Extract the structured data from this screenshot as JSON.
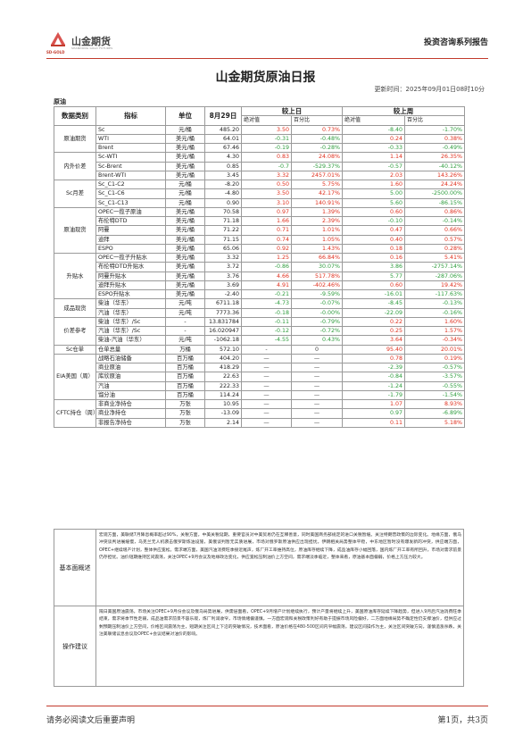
{
  "header": {
    "company_cn": "山金期货",
    "company_sub": "SHANDONG GOLD FUTURES",
    "company_en": "SD-GOLD",
    "report_series": "投资咨询系列报告"
  },
  "title": "山金期货原油日报",
  "update_time": "更新时间：2025年09月01日08时10分",
  "section": "原油",
  "table": {
    "headers": {
      "category": "数据类别",
      "indicator": "指标",
      "unit": "单位",
      "date": "8月29日",
      "vs_day": "较上日",
      "vs_week": "较上周"
    },
    "sub_headers": {
      "abs": "绝对值",
      "pct": "百分比"
    },
    "rows": [
      {
        "cat": "原油期货",
        "span": 3,
        "ind": "Sc",
        "unit": "元/桶",
        "val": "485.20",
        "d_abs": "3.50",
        "d_pct": "0.73%",
        "d_c": "red",
        "w_abs": "-8.40",
        "w_pct": "-1.70%",
        "w_c": "green"
      },
      {
        "ind": "WTI",
        "unit": "美元/桶",
        "val": "64.01",
        "d_abs": "-0.31",
        "d_pct": "-0.48%",
        "d_c": "green",
        "w_abs": "0.24",
        "w_pct": "0.38%",
        "w_c": "red"
      },
      {
        "ind": "Brent",
        "unit": "美元/桶",
        "val": "67.46",
        "d_abs": "-0.19",
        "d_pct": "-0.28%",
        "d_c": "green",
        "w_abs": "-0.33",
        "w_pct": "-0.49%",
        "w_c": "green"
      },
      {
        "cat": "内外价差",
        "span": 3,
        "ind": "Sc-WTI",
        "unit": "美元/桶",
        "val": "4.30",
        "d_abs": "0.83",
        "d_pct": "24.08%",
        "d_c": "red",
        "w_abs": "1.14",
        "w_pct": "26.35%",
        "w_c": "red"
      },
      {
        "ind": "Sc-Brent",
        "unit": "美元/桶",
        "val": "0.85",
        "d_abs": "-0.7",
        "d_pct": "-529.37%",
        "d_c": "green",
        "w_abs": "-0.57",
        "w_pct": "-40.12%",
        "w_c": "green"
      },
      {
        "ind": "Brent-WTI",
        "unit": "美元/桶",
        "val": "3.45",
        "d_abs": "3.32",
        "d_pct": "2457.01%",
        "d_c": "red",
        "w_abs": "2.03",
        "w_pct": "143.26%",
        "w_c": "red"
      },
      {
        "cat": "Sc月差",
        "span": 3,
        "ind": "Sc_C1-C2",
        "unit": "元/桶",
        "val": "-8.20",
        "d_abs": "0.50",
        "d_pct": "5.75%",
        "d_c": "red",
        "w_abs": "1.60",
        "w_pct": "24.24%",
        "w_c": "red"
      },
      {
        "ind": "Sc_C1-C6",
        "unit": "元/桶",
        "val": "-4.80",
        "d_abs": "3.50",
        "d_pct": "42.17%",
        "d_c": "red",
        "w_abs": "5.00",
        "w_pct": "-2500.00%",
        "w_c": "green"
      },
      {
        "ind": "Sc_C1-C13",
        "unit": "元/桶",
        "val": "0.90",
        "d_abs": "3.10",
        "d_pct": "140.91%",
        "d_c": "red",
        "w_abs": "5.60",
        "w_pct": "-86.15%",
        "w_c": "green"
      },
      {
        "cat": "原油现货",
        "span": 5,
        "ind": "OPEC一揽子原油",
        "unit": "美元/桶",
        "val": "70.58",
        "d_abs": "0.97",
        "d_pct": "1.39%",
        "d_c": "red",
        "w_abs": "0.60",
        "w_pct": "0.86%",
        "w_c": "red"
      },
      {
        "ind": "布伦特DTD",
        "unit": "美元/桶",
        "val": "71.18",
        "d_abs": "1.66",
        "d_pct": "2.39%",
        "d_c": "red",
        "w_abs": "-0.10",
        "w_pct": "-0.14%",
        "w_c": "green"
      },
      {
        "ind": "阿曼",
        "unit": "美元/桶",
        "val": "71.22",
        "d_abs": "0.71",
        "d_pct": "1.01%",
        "d_c": "red",
        "w_abs": "0.47",
        "w_pct": "0.66%",
        "w_c": "red"
      },
      {
        "ind": "迪拜",
        "unit": "美元/桶",
        "val": "71.15",
        "d_abs": "0.74",
        "d_pct": "1.05%",
        "d_c": "red",
        "w_abs": "0.40",
        "w_pct": "0.57%",
        "w_c": "red"
      },
      {
        "ind": "ESPO",
        "unit": "美元/桶",
        "val": "65.06",
        "d_abs": "0.92",
        "d_pct": "1.43%",
        "d_c": "red",
        "w_abs": "0.18",
        "w_pct": "0.28%",
        "w_c": "red"
      },
      {
        "cat": "升贴水",
        "span": 5,
        "ind": "OPEC一揽子升贴水",
        "unit": "美元/桶",
        "val": "3.32",
        "d_abs": "1.25",
        "d_pct": "66.84%",
        "d_c": "red",
        "w_abs": "0.16",
        "w_pct": "5.41%",
        "w_c": "red"
      },
      {
        "ind": "布伦特DTD升贴水",
        "unit": "美元/桶",
        "val": "3.72",
        "d_abs": "-0.86",
        "d_pct": "30.07%",
        "d_c": "green",
        "w_abs": "3.86",
        "w_pct": "-2757.14%",
        "w_c": "green"
      },
      {
        "ind": "阿曼升贴水",
        "unit": "美元/桶",
        "val": "3.76",
        "d_abs": "4.66",
        "d_pct": "517.78%",
        "d_c": "red",
        "w_abs": "5.77",
        "w_pct": "-287.06%",
        "w_c": "green"
      },
      {
        "ind": "迪拜升贴水",
        "unit": "美元/桶",
        "val": "3.69",
        "d_abs": "4.91",
        "d_pct": "-402.46%",
        "d_c": "red",
        "w_abs": "0.60",
        "w_pct": "19.42%",
        "w_c": "red"
      },
      {
        "ind": "ESPO升贴水",
        "unit": "美元/桶",
        "val": "-2.40",
        "d_abs": "-0.21",
        "d_pct": "-9.59%",
        "d_c": "green",
        "w_abs": "-16.01",
        "w_pct": "-117.63%",
        "w_c": "green"
      },
      {
        "cat": "成品现货",
        "span": 2,
        "ind": "柴油（华东）",
        "unit": "元/吨",
        "val": "6711.18",
        "d_abs": "-4.73",
        "d_pct": "-0.07%",
        "d_c": "green",
        "w_abs": "-8.45",
        "w_pct": "-0.13%",
        "w_c": "green"
      },
      {
        "ind": "汽油（华东）",
        "unit": "元/吨",
        "val": "7773.36",
        "d_abs": "-0.18",
        "d_pct": "-0.00%",
        "d_c": "green",
        "w_abs": "-22.09",
        "w_pct": "-0.16%",
        "w_c": "green"
      },
      {
        "cat": "价差参考",
        "span": 3,
        "ind": "柴油（华东）/Sc",
        "unit": "-",
        "val": "13.831784",
        "d_abs": "-0.11",
        "d_pct": "-0.79%",
        "d_c": "green",
        "w_abs": "0.22",
        "w_pct": "1.60%",
        "w_c": "red"
      },
      {
        "ind": "汽油（华东）/Sc",
        "unit": "-",
        "val": "16.020947",
        "d_abs": "-0.12",
        "d_pct": "-0.72%",
        "d_c": "green",
        "w_abs": "0.25",
        "w_pct": "1.57%",
        "w_c": "red"
      },
      {
        "ind": "柴油-汽油（华东）",
        "unit": "元/吨",
        "val": "-1062.18",
        "d_abs": "-4.55",
        "d_pct": "0.43%",
        "d_c": "green",
        "w_abs": "3.64",
        "w_pct": "-0.34%",
        "w_c": "red"
      },
      {
        "cat": "Sc仓单",
        "span": 1,
        "ind": "仓单总量",
        "unit": "万桶",
        "val": "572.10",
        "d_abs": "-",
        "d_pct": "0",
        "d_c": "dash",
        "w_abs": "95.40",
        "w_pct": "20.01%",
        "w_c": "red"
      },
      {
        "cat": "EIA美国（周）",
        "span": 5,
        "ind": "战略石油储备",
        "unit": "百万桶",
        "val": "404.20",
        "d_abs": "—",
        "d_pct": "—",
        "d_c": "dash",
        "w_abs": "0.78",
        "w_pct": "0.19%",
        "w_c": "red"
      },
      {
        "ind": "商业原油",
        "unit": "百万桶",
        "val": "418.29",
        "d_abs": "—",
        "d_pct": "—",
        "d_c": "dash",
        "w_abs": "-2.39",
        "w_pct": "-0.57%",
        "w_c": "green"
      },
      {
        "ind": "库欣原油",
        "unit": "百万桶",
        "val": "22.63",
        "d_abs": "—",
        "d_pct": "—",
        "d_c": "dash",
        "w_abs": "-0.84",
        "w_pct": "-3.57%",
        "w_c": "green"
      },
      {
        "ind": "汽油",
        "unit": "百万桶",
        "val": "222.33",
        "d_abs": "—",
        "d_pct": "—",
        "d_c": "dash",
        "w_abs": "-1.24",
        "w_pct": "-0.55%",
        "w_c": "green"
      },
      {
        "ind": "馏分油",
        "unit": "百万桶",
        "val": "114.24",
        "d_abs": "—",
        "d_pct": "—",
        "d_c": "dash",
        "w_abs": "-1.79",
        "w_pct": "-1.54%",
        "w_c": "green"
      },
      {
        "cat": "CFTC持仓（周）",
        "span": 3,
        "ind": "非商业净持仓",
        "unit": "万张",
        "val": "10.95",
        "d_abs": "—",
        "d_pct": "—",
        "d_c": "dash",
        "w_abs": "1.07",
        "w_pct": "8.93%",
        "w_c": "red"
      },
      {
        "ind": "商业净持仓",
        "unit": "万张",
        "val": "-13.09",
        "d_abs": "—",
        "d_pct": "—",
        "d_c": "dash",
        "w_abs": "0.97",
        "w_pct": "-6.89%",
        "w_c": "green"
      },
      {
        "ind": "非报告净持仓",
        "unit": "万张",
        "val": "2.14",
        "d_abs": "—",
        "d_pct": "—",
        "d_c": "dash",
        "w_abs": "0.11",
        "w_pct": "5.18%",
        "w_c": "red"
      }
    ]
  },
  "notes": {
    "basic_label": "基本面概述",
    "basic_text": "宏观方面，美联储7月降息概率超过90%，关税方面，中美关税延期，重要官员对中美贸易仍在互释善意，同时美国商务部规定的进口关税暂缓。关注特朗普政策的边际变化。地缘方面，俄乌冲突谈判进展缓慢，乌克兰无人机袭击俄罗斯炼油设施，美俄谈判暂无实质进展，市场对俄罗斯原油供应出现担忧，伊朗相关局势整体平稳，中东地区暂时没有爆发新的冲突，供应端方面，OPEC+继续增产计划，整体供应宽松。需求端方面，美国汽油消费旺季接近尾声，炼厂开工率维持高位，原油库存继续下降，成品油库存小幅回落，国内炼厂开工率有所回升，市场对需求前景仍存担忧。油价短期维持区间震荡，关注OPEC+9月会议及地缘政治变化，供应宽松压制油价上方空间，需求端淡季临近，整体来看，原油基本面偏弱，价格上方压力较大。",
    "ops_label": "操作建议",
    "ops_text": "隔日美国原油震荡，市场关注OPEC+9月份会议及俄乌局势进展，供需层面看，OPEC+9月增产计划继续执行，预计产量将继续上升，美国原油库存延续下降趋势，但进入9月后汽油消费旺季结束，需求将季节性走弱，成品油需求前景不容乐观，炼厂利润收窄，市场情绪偏谨慎，一方面宏观和关税政策利好有助于提振市场风险偏好，二方面地缘局势不确定性仍支撑油价，但供应过剩预期压制油价上方空间，价格区间震荡为主，短期关注区间上下沿的突破情况，技术面看，原油价格在480-500区间内窄幅震荡，建议区间操作为主，关注区间突破方向，谨慎追涨杀跌，关注美联储议息会议及OPEC+会议结果对油价的影响。"
  },
  "footer": {
    "disclaimer": "请务必阅读文后重要声明",
    "page": "第1页，共3页"
  }
}
